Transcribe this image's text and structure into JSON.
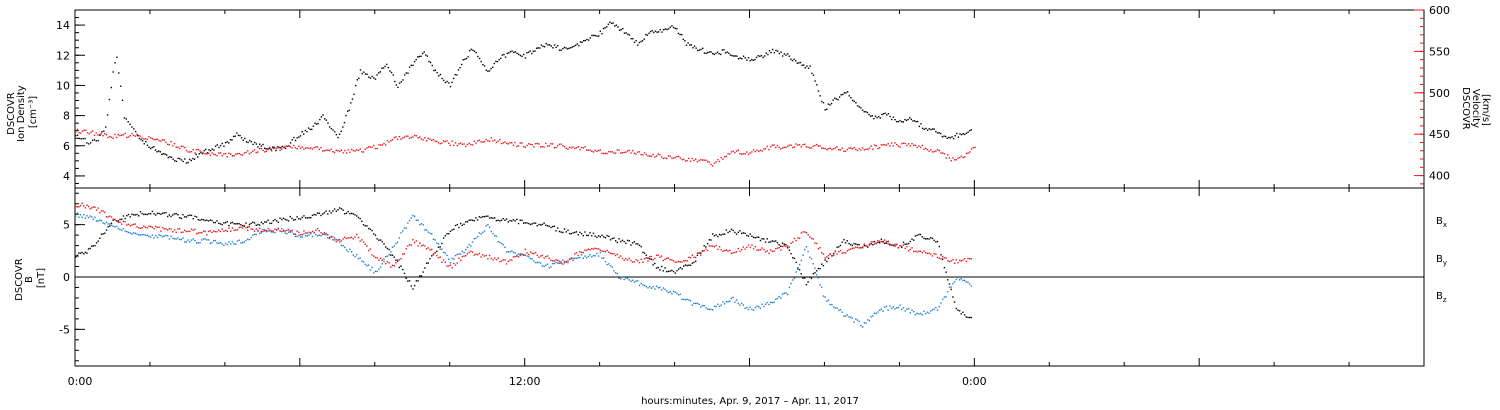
{
  "chart_data": [
    {
      "type": "scatter",
      "panel": "plasma",
      "x_unit": "hours",
      "xlim": [
        0,
        36
      ],
      "left_axis": {
        "label_lines": [
          "DSCOVR",
          "Ion Density",
          "[cm⁻³]"
        ],
        "ylim": [
          3.2,
          15
        ],
        "major_ticks": [
          4,
          6,
          8,
          10,
          12,
          14
        ],
        "minor_step": 0.5,
        "color": "#000000"
      },
      "right_axis": {
        "label_lines": [
          "DSCOVR",
          "Velocity",
          "[km/s]"
        ],
        "ylim": [
          385,
          600
        ],
        "major_ticks": [
          400,
          450,
          500,
          550,
          600
        ],
        "minor_step": 10,
        "color": "#e8191c"
      },
      "series": [
        {
          "name": "Ion Density",
          "color": "#000000",
          "axis": "left",
          "x": [
            0,
            0.2,
            0.4,
            0.6,
            0.8,
            1.0,
            1.1,
            1.2,
            1.3,
            1.5,
            1.7,
            2.0,
            2.3,
            2.6,
            3.0,
            3.3,
            3.6,
            4.0,
            4.3,
            4.6,
            5.0,
            5.3,
            5.6,
            6.0,
            6.3,
            6.6,
            7.0,
            7.3,
            7.6,
            8.0,
            8.3,
            8.6,
            9.0,
            9.3,
            9.6,
            10.0,
            10.3,
            10.6,
            11.0,
            11.3,
            11.6,
            12.0,
            12.3,
            12.6,
            13.0,
            13.3,
            13.6,
            14.0,
            14.3,
            14.6,
            15.0,
            15.3,
            15.6,
            16.0,
            16.3,
            16.6,
            17.0,
            17.3,
            17.6,
            18.0,
            18.3,
            18.6,
            19.0,
            19.3,
            19.6,
            20.0,
            20.3,
            20.6,
            21.0,
            21.3,
            21.6,
            22.0,
            22.3,
            22.6,
            23.0,
            23.3,
            23.6,
            23.9
          ],
          "y": [
            6.8,
            6.5,
            6.2,
            6.5,
            7.2,
            10.8,
            12.0,
            10.0,
            8.0,
            7.2,
            6.5,
            6.0,
            5.5,
            5.2,
            5.0,
            5.5,
            5.8,
            6.2,
            6.8,
            6.3,
            6.0,
            5.8,
            6.0,
            6.8,
            7.2,
            8.0,
            6.5,
            8.5,
            11.0,
            10.5,
            11.5,
            10.0,
            11.5,
            12.2,
            11.0,
            10.0,
            11.5,
            12.5,
            11.0,
            11.8,
            12.2,
            12.0,
            12.5,
            12.8,
            12.4,
            12.7,
            13.0,
            13.5,
            14.2,
            13.7,
            12.8,
            13.5,
            13.7,
            13.9,
            12.8,
            12.5,
            12.1,
            12.3,
            12.0,
            11.8,
            12.0,
            12.3,
            12.0,
            11.5,
            11.2,
            8.5,
            9.2,
            9.5,
            8.5,
            7.8,
            8.2,
            7.6,
            7.8,
            7.3,
            7.0,
            6.5,
            6.8,
            7.1
          ]
        },
        {
          "name": "Velocity",
          "color": "#e8191c",
          "axis": "right",
          "x": [
            0,
            0.5,
            1.0,
            1.5,
            2.0,
            2.5,
            3.0,
            3.5,
            4.0,
            4.5,
            5.0,
            5.5,
            6.0,
            6.5,
            7.0,
            7.5,
            8.0,
            8.5,
            9.0,
            9.5,
            10.0,
            10.5,
            11.0,
            11.5,
            12.0,
            12.5,
            13.0,
            13.5,
            14.0,
            14.5,
            15.0,
            15.5,
            16.0,
            16.5,
            17.0,
            17.5,
            18.0,
            18.5,
            19.0,
            19.5,
            20.0,
            20.5,
            21.0,
            21.5,
            22.0,
            22.5,
            23.0,
            23.5,
            24.0
          ],
          "y": [
            455,
            452,
            448,
            450,
            446,
            440,
            432,
            428,
            425,
            428,
            432,
            434,
            435,
            433,
            430,
            430,
            435,
            445,
            447,
            443,
            440,
            438,
            445,
            440,
            437,
            438,
            436,
            434,
            430,
            430,
            428,
            425,
            422,
            420,
            415,
            430,
            428,
            435,
            436,
            437,
            435,
            432,
            432,
            437,
            438,
            436,
            430,
            418,
            435
          ]
        }
      ]
    },
    {
      "type": "scatter",
      "panel": "magnetic-field",
      "x_unit": "hours",
      "xlim": [
        0,
        36
      ],
      "left_axis": {
        "label_lines": [
          "DSCOVR",
          "B",
          "[nT]"
        ],
        "ylim": [
          -8.5,
          8.5
        ],
        "major_ticks": [
          -5,
          0,
          5
        ],
        "minor_step": 1,
        "color": "#000000"
      },
      "zero_line": true,
      "series": [
        {
          "name": "Bx",
          "label": "B",
          "subscript": "x",
          "color": "#000000",
          "x": [
            0,
            0.3,
            0.6,
            1.0,
            1.5,
            2.0,
            2.5,
            3.0,
            3.5,
            4.0,
            4.5,
            5.0,
            5.5,
            6.0,
            6.5,
            7.0,
            7.5,
            8.0,
            8.5,
            9.0,
            9.5,
            10.0,
            10.5,
            11.0,
            11.5,
            12.0,
            12.5,
            13.0,
            13.5,
            14.0,
            14.5,
            15.0,
            15.5,
            16.0,
            16.5,
            17.0,
            17.5,
            18.0,
            18.5,
            19.0,
            19.5,
            20.0,
            20.5,
            21.0,
            21.5,
            22.0,
            22.5,
            23.0,
            23.5,
            23.9
          ],
          "y": [
            2.0,
            2.5,
            3.5,
            5.5,
            6.0,
            6.2,
            6.0,
            5.8,
            5.5,
            5.2,
            5.0,
            5.2,
            5.5,
            5.8,
            6.0,
            6.5,
            6.0,
            4.0,
            2.0,
            -1.0,
            2.0,
            4.5,
            5.5,
            5.8,
            5.5,
            5.3,
            5.0,
            4.5,
            4.2,
            4.0,
            3.5,
            3.2,
            1.0,
            0.5,
            1.5,
            4.0,
            4.5,
            4.0,
            3.5,
            3.0,
            -0.5,
            1.5,
            3.5,
            3.0,
            3.5,
            3.0,
            4.0,
            3.5,
            -3.0,
            -3.8
          ]
        },
        {
          "name": "By",
          "label": "B",
          "subscript": "y",
          "color": "#1a7fd4",
          "x": [
            0,
            0.3,
            0.6,
            1.0,
            1.5,
            2.0,
            2.5,
            3.0,
            3.5,
            4.0,
            4.5,
            5.0,
            5.5,
            6.0,
            6.5,
            7.0,
            7.5,
            8.0,
            8.5,
            9.0,
            9.5,
            10.0,
            10.5,
            11.0,
            11.5,
            12.0,
            12.5,
            13.0,
            13.5,
            14.0,
            14.5,
            15.0,
            15.5,
            16.0,
            16.5,
            17.0,
            17.5,
            18.0,
            18.5,
            19.0,
            19.5,
            20.0,
            20.5,
            21.0,
            21.5,
            22.0,
            22.5,
            23.0,
            23.5,
            23.9
          ],
          "y": [
            6.0,
            5.8,
            5.5,
            4.8,
            4.2,
            4.0,
            3.8,
            3.5,
            3.5,
            3.2,
            3.5,
            4.5,
            4.5,
            4.0,
            4.2,
            3.5,
            2.0,
            0.5,
            3.0,
            6.0,
            4.0,
            1.5,
            3.0,
            5.0,
            2.5,
            2.0,
            1.0,
            1.5,
            2.0,
            2.2,
            0.0,
            -0.5,
            -1.0,
            -1.5,
            -2.5,
            -3.0,
            -2.0,
            -3.0,
            -2.5,
            -1.5,
            3.0,
            -2.0,
            -3.5,
            -4.5,
            -3.0,
            -2.8,
            -3.5,
            -3.0,
            0.0,
            -0.8
          ]
        },
        {
          "name": "Bz",
          "label": "B",
          "subscript": "z",
          "color": "#e8191c",
          "x": [
            0,
            0.3,
            0.6,
            1.0,
            1.5,
            2.0,
            2.5,
            3.0,
            3.5,
            4.0,
            4.5,
            5.0,
            5.5,
            6.0,
            6.5,
            7.0,
            7.5,
            8.0,
            8.5,
            9.0,
            9.5,
            10.0,
            10.5,
            11.0,
            11.5,
            12.0,
            12.5,
            13.0,
            13.5,
            14.0,
            14.5,
            15.0,
            15.5,
            16.0,
            16.5,
            17.0,
            17.5,
            18.0,
            18.5,
            19.0,
            19.5,
            20.0,
            20.5,
            21.0,
            21.5,
            22.0,
            22.5,
            23.0,
            23.5,
            23.9
          ],
          "y": [
            7.0,
            6.8,
            6.5,
            5.5,
            5.0,
            4.8,
            4.5,
            4.5,
            4.3,
            4.5,
            4.8,
            4.5,
            4.5,
            4.2,
            4.5,
            3.5,
            4.0,
            2.0,
            1.0,
            3.5,
            2.5,
            1.0,
            2.5,
            2.0,
            1.5,
            2.5,
            2.0,
            1.5,
            2.5,
            2.8,
            2.0,
            1.5,
            2.0,
            1.5,
            2.0,
            3.0,
            2.5,
            3.0,
            2.5,
            3.0,
            4.5,
            2.0,
            2.5,
            3.0,
            3.5,
            3.0,
            2.5,
            2.0,
            1.5,
            1.8
          ]
        }
      ]
    }
  ],
  "x_axis": {
    "ticks": [
      {
        "x": 0,
        "label": "0:00"
      },
      {
        "x": 12,
        "label": "12:00"
      },
      {
        "x": 24,
        "label": "0:00"
      }
    ],
    "minor_step": 2,
    "title": "hours:minutes, Apr.  9, 2017 – Apr. 11, 2017"
  }
}
